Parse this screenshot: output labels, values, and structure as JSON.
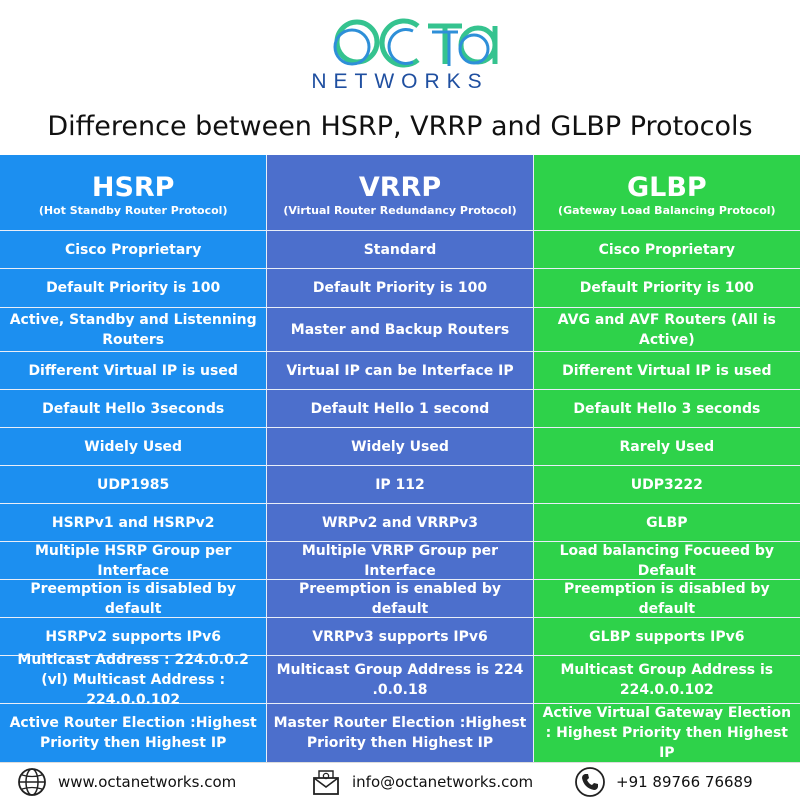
{
  "logo": {
    "mark": "octa",
    "word": "NETWORKS"
  },
  "title": "Difference between HSRP, VRRP and GLBP Protocols",
  "colors": {
    "hsrp": "#1c8ff0",
    "vrrp": "#4c6fcc",
    "glbp": "#2ed24a",
    "logo_green": "#35c38f",
    "logo_blue": "#1f4fa0"
  },
  "columns": [
    {
      "name": "HSRP",
      "full": "(Hot Standby Router Protocol)",
      "rows": [
        "Cisco Proprietary",
        "Default Priority is 100",
        "Active, Standby and Listenning Routers",
        "Different Virtual IP is used",
        "Default Hello 3seconds",
        "Widely Used",
        "UDP1985",
        "HSRPv1 and HSRPv2",
        "Multiple HSRP Group per Interface",
        "Preemption is disabled by default",
        "HSRPv2 supports IPv6",
        "Multicast Address : 224.0.0.2 (vl) Multicast Address : 224.0.0.102",
        "Active Router Election :Highest Priority then Highest IP"
      ]
    },
    {
      "name": "VRRP",
      "full": "(Virtual Router Redundancy Protocol)",
      "rows": [
        "Standard",
        "Default Priority is 100",
        "Master and Backup Routers",
        "Virtual IP can be Interface IP",
        "Default Hello 1 second",
        "Widely Used",
        "IP 112",
        "WRPv2 and VRRPv3",
        "Multiple VRRP Group per Interface",
        "Preemption is enabled by default",
        "VRRPv3 supports IPv6",
        "Multicast Group Address is 224 .0.0.18",
        "Master Router Election :Highest Priority then Highest IP"
      ]
    },
    {
      "name": "GLBP",
      "full": "(Gateway Load Balancing Protocol)",
      "rows": [
        "Cisco Proprietary",
        "Default Priority is 100",
        "AVG and AVF Routers (All is Active)",
        "Different Virtual IP is used",
        "Default Hello 3 seconds",
        "Rarely Used",
        "UDP3222",
        "GLBP",
        "Load balancing Focueed by Default",
        "Preemption is disabled by default",
        "GLBP supports IPv6",
        "Multicast Group Address is 224.0.0.102",
        "Active Virtual Gateway Election : Highest Priority then Highest IP"
      ]
    }
  ],
  "footer": {
    "website": "www.octanetworks.com",
    "email": "info@octanetworks.com",
    "phone": "+91 89766 76689",
    "icons": [
      "globe-icon",
      "email-icon",
      "phone-icon"
    ]
  }
}
